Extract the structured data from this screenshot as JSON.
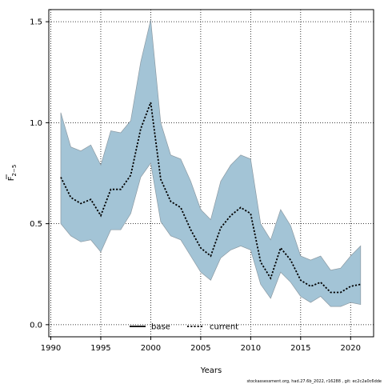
{
  "chart_data": {
    "type": "line",
    "xlabel": "Years",
    "ylabel_main": "F",
    "ylabel_sub": "2−5",
    "xlim": [
      1989.8,
      2022.3
    ],
    "ylim": [
      -0.06,
      1.56
    ],
    "xticks": [
      1990,
      1995,
      2000,
      2005,
      2010,
      2015,
      2020
    ],
    "yticks": [
      0.0,
      0.5,
      1.0,
      1.5
    ],
    "ytick_labels": [
      "0.0",
      "0.5",
      "1.0",
      "1.5"
    ],
    "grid": true,
    "legend_position": "bottom-center",
    "x": [
      1991,
      1992,
      1993,
      1994,
      1995,
      1996,
      1997,
      1998,
      1999,
      2000,
      2001,
      2002,
      2003,
      2004,
      2005,
      2006,
      2007,
      2008,
      2009,
      2010,
      2011,
      2012,
      2013,
      2014,
      2015,
      2016,
      2017,
      2018,
      2019,
      2020,
      2021
    ],
    "band": {
      "color": "#a3c4d6",
      "stroke": "#8c9aa3",
      "upper": [
        1.05,
        0.88,
        0.86,
        0.89,
        0.79,
        0.96,
        0.95,
        1.01,
        1.3,
        1.51,
        1.0,
        0.84,
        0.82,
        0.71,
        0.57,
        0.52,
        0.71,
        0.79,
        0.84,
        0.82,
        0.5,
        0.42,
        0.57,
        0.49,
        0.34,
        0.32,
        0.34,
        0.27,
        0.28,
        0.34,
        0.39
      ],
      "lower": [
        0.5,
        0.44,
        0.41,
        0.42,
        0.36,
        0.47,
        0.47,
        0.55,
        0.73,
        0.8,
        0.51,
        0.44,
        0.42,
        0.34,
        0.26,
        0.22,
        0.33,
        0.37,
        0.39,
        0.37,
        0.2,
        0.13,
        0.26,
        0.21,
        0.14,
        0.11,
        0.14,
        0.09,
        0.09,
        0.11,
        0.1
      ]
    },
    "series": [
      {
        "name": "current",
        "color": "#000000",
        "style": "dotted",
        "values": [
          0.73,
          0.63,
          0.6,
          0.62,
          0.54,
          0.67,
          0.67,
          0.74,
          0.97,
          1.1,
          0.72,
          0.61,
          0.58,
          0.47,
          0.38,
          0.34,
          0.48,
          0.54,
          0.58,
          0.55,
          0.31,
          0.23,
          0.38,
          0.32,
          0.22,
          0.19,
          0.21,
          0.16,
          0.16,
          0.19,
          0.2
        ]
      }
    ],
    "legend": [
      {
        "label": "base",
        "style": "solid",
        "color": "#000000"
      },
      {
        "label": "current",
        "style": "dotted",
        "color": "#000000"
      }
    ]
  },
  "footer": "stockassessment.org, had.27.6b_2022, r16288 , git: ec2c2a0c6dde"
}
